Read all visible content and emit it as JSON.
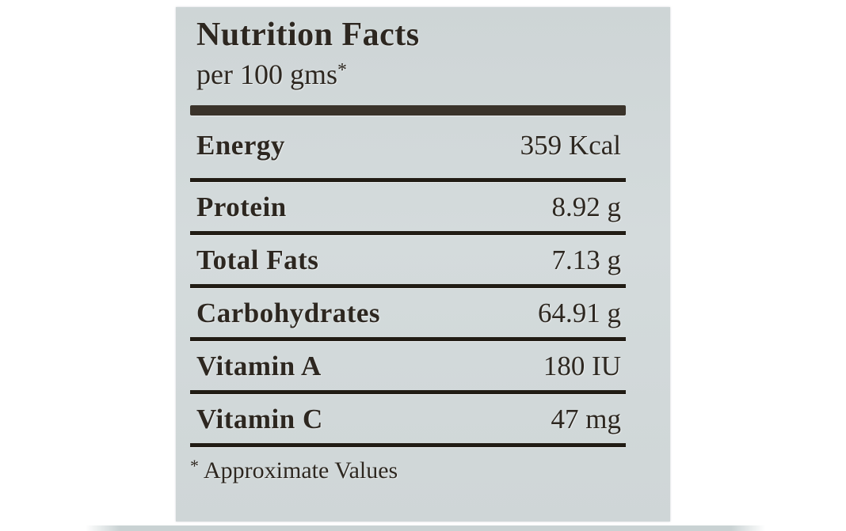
{
  "label": {
    "title": "Nutrition Facts",
    "subtitle": {
      "text": "per 100 gms",
      "marker": "*"
    },
    "rows": [
      {
        "name": "Energy",
        "value": "359 Kcal"
      },
      {
        "name": "Protein",
        "value": "8.92 g"
      },
      {
        "name": "Total Fats",
        "value": "7.13 g"
      },
      {
        "name": "Carbohydrates",
        "value": "64.91 g"
      },
      {
        "name": "Vitamin A",
        "value": "180 IU"
      },
      {
        "name": "Vitamin C",
        "value": "47 mg"
      }
    ],
    "footnote": {
      "marker": "*",
      "text": "Approximate Values"
    },
    "colors": {
      "page_bg": "#ffffff",
      "panel_bg": "#cfd6d7",
      "text": "#2d2720",
      "rule": "#211c14",
      "thick_bar": "#3a332a",
      "shadow_strip": "#c9d2d3"
    }
  }
}
